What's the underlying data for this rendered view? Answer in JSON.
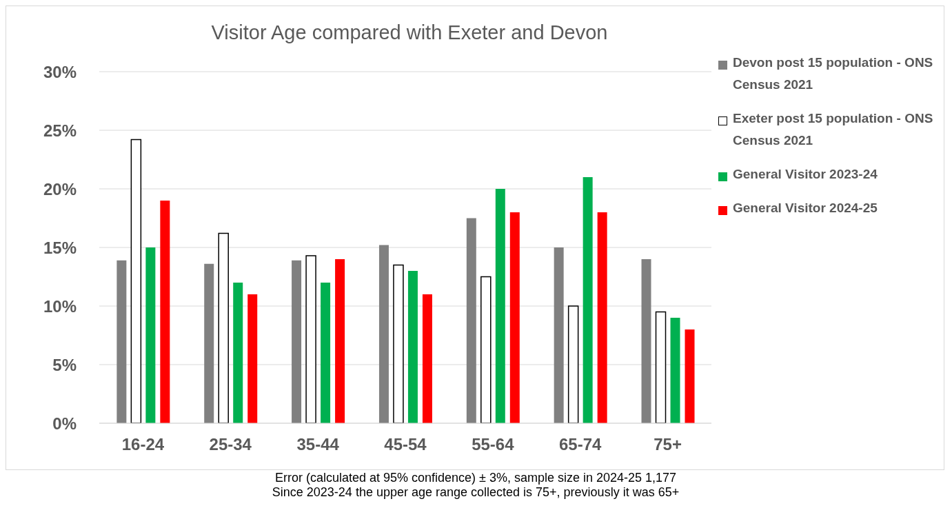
{
  "chart_data": {
    "type": "bar",
    "title": "Visitor Age compared with Exeter and Devon",
    "categories": [
      "16-24",
      "25-34",
      "35-44",
      "45-54",
      "55-64",
      "65-74",
      "75+"
    ],
    "series": [
      {
        "name": "Devon post 15 population - ONS Census 2021",
        "color": "#808080",
        "values": [
          13.9,
          13.6,
          13.9,
          15.2,
          17.5,
          15.0,
          14.0
        ]
      },
      {
        "name": "Exeter post 15 population - ONS Census 2021",
        "color": "#ffffff",
        "values": [
          24.2,
          16.2,
          14.3,
          13.5,
          12.5,
          10.0,
          9.5
        ]
      },
      {
        "name": "General Visitor 2023-24",
        "color": "#00b050",
        "values": [
          15,
          12,
          12,
          13,
          20,
          21,
          9
        ]
      },
      {
        "name": "General Visitor 2024-25",
        "color": "#ff0000",
        "values": [
          19,
          11,
          14,
          11,
          18,
          18,
          8
        ]
      }
    ],
    "ylim": [
      0,
      30
    ],
    "yticks": [
      {
        "value": 0,
        "label": "0%"
      },
      {
        "value": 5,
        "label": "5%"
      },
      {
        "value": 10,
        "label": "10%"
      },
      {
        "value": 15,
        "label": "15%"
      },
      {
        "value": 20,
        "label": "20%"
      },
      {
        "value": 25,
        "label": "25%"
      },
      {
        "value": 30,
        "label": "30%"
      }
    ],
    "grid": "y",
    "legend": "right",
    "annotations": [
      "Error (calculated at 95% confidence) ± 3%, sample size in 2024-25 1,177",
      "Since 2023-24 the upper age range collected is 75+, previously it was 65+"
    ]
  }
}
